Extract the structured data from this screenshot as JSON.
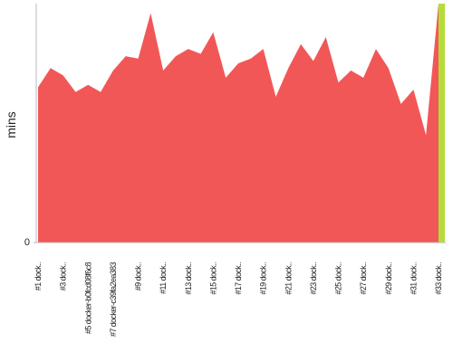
{
  "chart_data": {
    "type": "area",
    "ylabel": "mins",
    "categories": [
      "#1 dock..",
      null,
      "#3 dock..",
      null,
      "#5 docker-b0fcd08f6c8",
      null,
      "#7 docker-c39fa2ea383",
      null,
      "#9 dock..",
      null,
      "#11 dock..",
      null,
      "#13 dock..",
      null,
      "#15 dock..",
      null,
      "#17 dock..",
      null,
      "#19 dock..",
      null,
      "#21 dock..",
      null,
      "#23 dock..",
      null,
      "#25 dock..",
      null,
      "#27 dock..",
      null,
      "#29 dock..",
      null,
      "#31 dock..",
      null,
      "#33 dock.."
    ],
    "series": [
      {
        "color": "#f25757",
        "values": [
          65,
          73,
          70,
          63,
          66,
          63,
          72,
          78,
          77,
          96,
          72,
          78,
          81,
          79,
          88,
          69,
          75,
          77,
          81,
          61,
          73,
          83,
          76,
          86,
          67,
          72,
          69,
          81,
          73,
          58,
          64,
          45,
          100
        ]
      },
      {
        "color": "#b5dd3a",
        "values": [
          null,
          null,
          null,
          null,
          null,
          null,
          null,
          null,
          null,
          null,
          null,
          null,
          null,
          null,
          null,
          null,
          null,
          null,
          null,
          null,
          null,
          null,
          null,
          null,
          null,
          null,
          null,
          null,
          null,
          null,
          null,
          null,
          100
        ]
      }
    ],
    "ylim": [
      0,
      100
    ],
    "yticks": [
      0
    ]
  }
}
